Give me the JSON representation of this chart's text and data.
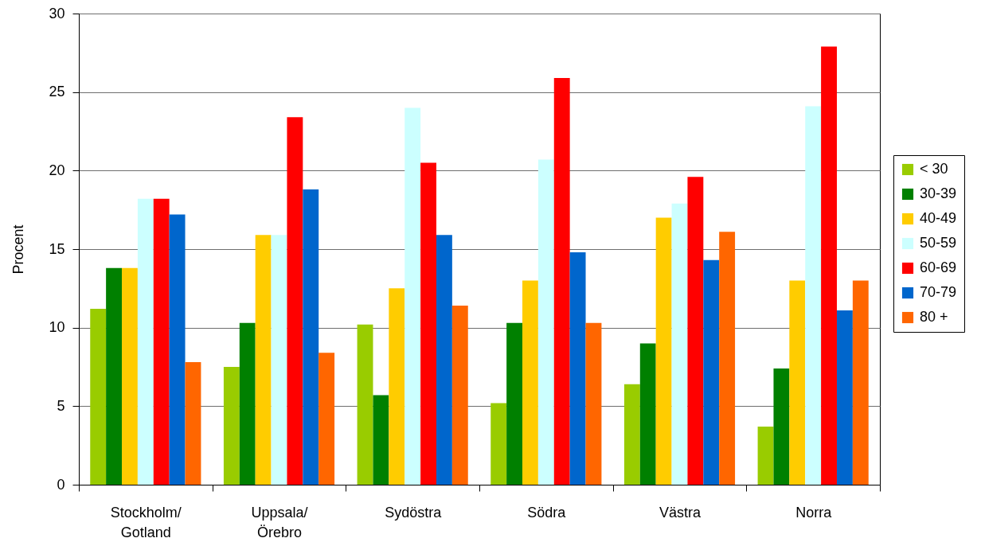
{
  "chart_data": {
    "type": "bar",
    "ylabel": "Procent",
    "categories": [
      "Stockholm/ Gotland",
      "Uppsala/ Örebro",
      "Sydöstra",
      "Södra",
      "Västra",
      "Norra"
    ],
    "series": [
      {
        "name": "< 30",
        "color": "#99cc00",
        "values": [
          11.2,
          7.5,
          10.2,
          5.2,
          6.4,
          3.7
        ]
      },
      {
        "name": "30-39",
        "color": "#008000",
        "values": [
          13.8,
          10.3,
          5.7,
          10.3,
          9.0,
          7.4
        ]
      },
      {
        "name": "40-49",
        "color": "#ffcc00",
        "values": [
          13.8,
          15.9,
          12.5,
          13.0,
          17.0,
          13.0
        ]
      },
      {
        "name": "50-59",
        "color": "#ccffff",
        "values": [
          18.2,
          15.9,
          24.0,
          20.7,
          17.9,
          24.1
        ]
      },
      {
        "name": "60-69",
        "color": "#ff0000",
        "values": [
          18.2,
          23.4,
          20.5,
          25.9,
          19.6,
          27.9
        ]
      },
      {
        "name": "70-79",
        "color": "#0066cc",
        "values": [
          17.2,
          18.8,
          15.9,
          14.8,
          14.3,
          11.1
        ]
      },
      {
        "name": "80 +",
        "color": "#ff6600",
        "values": [
          7.8,
          8.4,
          11.4,
          10.3,
          16.1,
          13.0
        ]
      }
    ],
    "ylim": [
      0,
      30
    ],
    "yticks": [
      0,
      5,
      10,
      15,
      20,
      25,
      30
    ],
    "grid": "y",
    "legend": "right"
  }
}
